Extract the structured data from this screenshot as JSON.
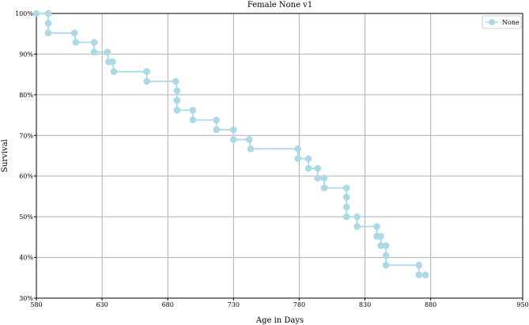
{
  "chart_data": {
    "type": "line",
    "title": "Female None v1",
    "xlabel": "Age in Days",
    "ylabel": "Survival",
    "xlim": [
      580,
      950
    ],
    "ylim": [
      0.3,
      1.0
    ],
    "xticks": [
      580,
      630,
      680,
      730,
      780,
      830,
      880,
      950
    ],
    "xtick_labels": [
      "580",
      "630",
      "680",
      "730",
      "780",
      "830",
      "880",
      "950"
    ],
    "yticks": [
      0.3,
      0.4,
      0.5,
      0.6,
      0.7,
      0.8,
      0.9,
      1.0
    ],
    "ytick_labels": [
      "30%",
      "40%",
      "50%",
      "60%",
      "70%",
      "80%",
      "90%",
      "100%"
    ],
    "grid": true,
    "legend_position": "top-right",
    "series": [
      {
        "name": "None",
        "color": "#add8e6",
        "points": [
          [
            580,
            1.0
          ],
          [
            589,
            1.0
          ],
          [
            589,
            0.976
          ],
          [
            589,
            0.952
          ],
          [
            609,
            0.952
          ],
          [
            610,
            0.929
          ],
          [
            624,
            0.929
          ],
          [
            624,
            0.905
          ],
          [
            634,
            0.905
          ],
          [
            635,
            0.881
          ],
          [
            638,
            0.881
          ],
          [
            639,
            0.857
          ],
          [
            664,
            0.857
          ],
          [
            664,
            0.833
          ],
          [
            686,
            0.833
          ],
          [
            687,
            0.81
          ],
          [
            687,
            0.786
          ],
          [
            687,
            0.762
          ],
          [
            699,
            0.762
          ],
          [
            699,
            0.738
          ],
          [
            717,
            0.738
          ],
          [
            717,
            0.714
          ],
          [
            730,
            0.714
          ],
          [
            730,
            0.69
          ],
          [
            742,
            0.69
          ],
          [
            743,
            0.667
          ],
          [
            779,
            0.667
          ],
          [
            779,
            0.643
          ],
          [
            787,
            0.643
          ],
          [
            787,
            0.619
          ],
          [
            794,
            0.619
          ],
          [
            794,
            0.595
          ],
          [
            799,
            0.595
          ],
          [
            799,
            0.571
          ],
          [
            816,
            0.571
          ],
          [
            816,
            0.548
          ],
          [
            816,
            0.524
          ],
          [
            816,
            0.5
          ],
          [
            824,
            0.5
          ],
          [
            824,
            0.476
          ],
          [
            839,
            0.476
          ],
          [
            839,
            0.452
          ],
          [
            842,
            0.452
          ],
          [
            842,
            0.429
          ],
          [
            846,
            0.429
          ],
          [
            846,
            0.405
          ],
          [
            846,
            0.381
          ],
          [
            871,
            0.381
          ],
          [
            871,
            0.357
          ],
          [
            876,
            0.357
          ]
        ]
      }
    ]
  }
}
